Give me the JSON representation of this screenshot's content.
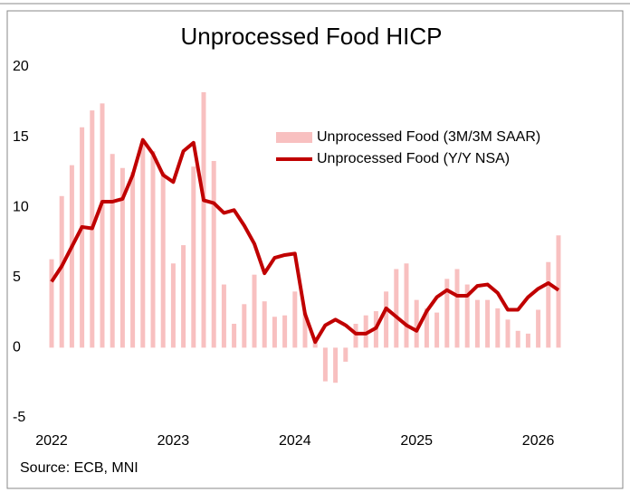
{
  "chart_data": {
    "type": "bar_line",
    "title": "Unprocessed Food HICP",
    "source": "Source: ECB, MNI",
    "categories": [
      "2022",
      null,
      null,
      null,
      null,
      null,
      null,
      null,
      null,
      null,
      null,
      null,
      "2023",
      null,
      null,
      null,
      null,
      null,
      null,
      null,
      null,
      null,
      null,
      null,
      "2024",
      null,
      null,
      null,
      null,
      null,
      null,
      null,
      null,
      null,
      null,
      null,
      "2025",
      null,
      null,
      null,
      null,
      null,
      null,
      null,
      null,
      null,
      null,
      null,
      "2026",
      null,
      null
    ],
    "series": [
      {
        "name": "Unprocessed Food (3M/3M SAAR)",
        "type": "bar",
        "color": "#f8c0c0",
        "values": [
          6.3,
          10.8,
          13.0,
          15.7,
          16.9,
          17.4,
          13.8,
          12.8,
          12.5,
          14.5,
          14.0,
          12.5,
          6.0,
          7.3,
          12.9,
          18.2,
          13.3,
          4.5,
          1.7,
          3.1,
          5.2,
          3.3,
          2.2,
          2.3,
          4.0,
          2.5,
          0.5,
          -2.4,
          -2.5,
          -1.0,
          1.7,
          2.3,
          2.6,
          4.0,
          5.6,
          6.0,
          3.4,
          2.8,
          2.5,
          4.9,
          5.6,
          4.5,
          3.4,
          3.4,
          2.8,
          2.0,
          1.2,
          1.0,
          2.7,
          6.1,
          8.0
        ]
      },
      {
        "name": "Unprocessed Food (Y/Y NSA)",
        "type": "line",
        "color": "#c00000",
        "values": [
          4.7,
          5.8,
          7.2,
          8.6,
          8.5,
          10.4,
          10.4,
          10.6,
          12.3,
          14.8,
          13.8,
          12.3,
          11.8,
          14.0,
          14.6,
          10.5,
          10.3,
          9.6,
          9.8,
          8.7,
          7.4,
          5.3,
          6.4,
          6.6,
          6.7,
          2.4,
          0.4,
          1.6,
          2.0,
          1.6,
          1.0,
          1.0,
          1.4,
          2.8,
          2.2,
          1.6,
          1.2,
          2.6,
          3.6,
          4.1,
          3.7,
          3.7,
          4.4,
          4.5,
          3.9,
          2.7,
          2.7,
          3.6,
          4.2,
          4.6,
          4.1
        ]
      }
    ],
    "ylim": [
      -5,
      20
    ],
    "yticks": [
      -5,
      0,
      5,
      10,
      15,
      20
    ],
    "grid": false,
    "legend": "upper right"
  }
}
